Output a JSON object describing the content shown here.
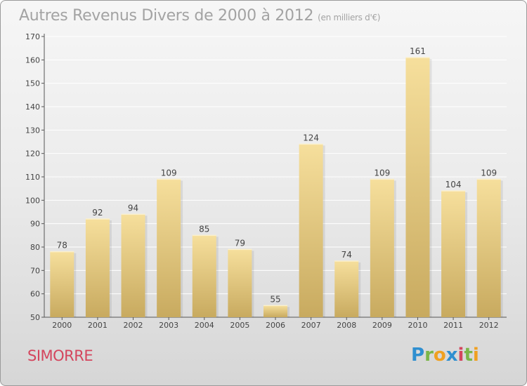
{
  "title": "Autres Revenus Divers de 2000 à 2012",
  "subtitle": "(en milliers d'€)",
  "place": "SIMORRE",
  "logo": {
    "text": "Proxiti",
    "letters": [
      {
        "ch": "P",
        "color": "#2f8fd0"
      },
      {
        "ch": "r",
        "color": "#7ab648"
      },
      {
        "ch": "o",
        "color": "#f0a020"
      },
      {
        "ch": "x",
        "color": "#2f8fd0"
      },
      {
        "ch": "i",
        "color": "#d4455d"
      },
      {
        "ch": "t",
        "color": "#7ab648"
      },
      {
        "ch": "i",
        "color": "#f0a020"
      }
    ]
  },
  "chart_data": {
    "type": "bar",
    "categories": [
      "2000",
      "2001",
      "2002",
      "2003",
      "2004",
      "2005",
      "2006",
      "2007",
      "2008",
      "2009",
      "2010",
      "2011",
      "2012"
    ],
    "values": [
      78,
      92,
      94,
      109,
      85,
      79,
      55,
      124,
      74,
      109,
      161,
      104,
      109
    ],
    "ylim": [
      50,
      170
    ],
    "yticks": [
      50,
      60,
      70,
      80,
      90,
      100,
      110,
      120,
      130,
      140,
      150,
      160,
      170
    ],
    "grid": true,
    "bar_color_top": "#f6df9c",
    "bar_color_bottom": "#c8aa5f"
  }
}
